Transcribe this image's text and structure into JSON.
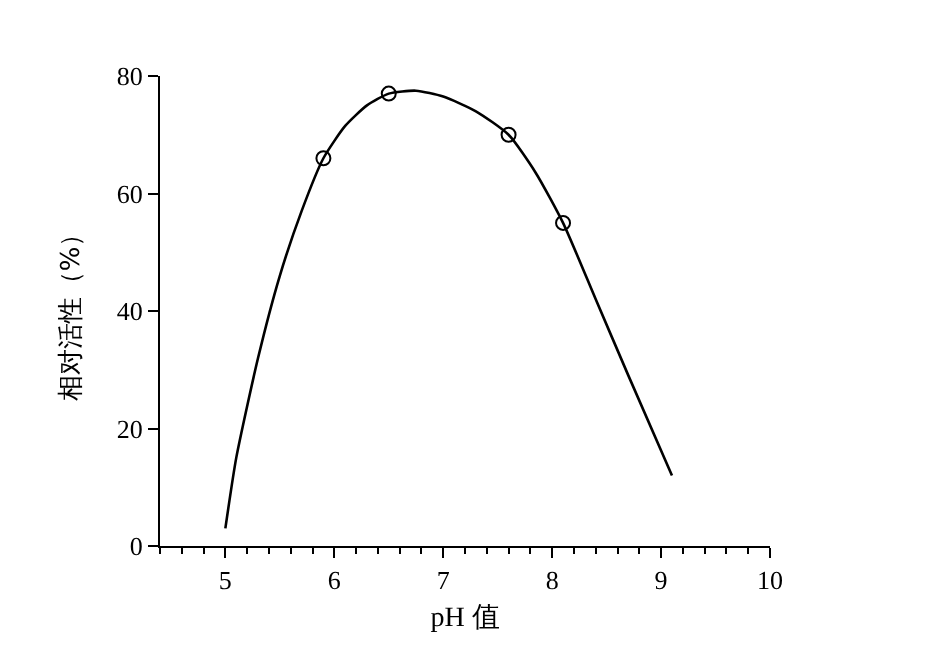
{
  "chart_data": {
    "type": "line",
    "xlabel": "pH 值",
    "ylabel": "相对活性（%）",
    "xlim": [
      4.4,
      10
    ],
    "xticks": [
      5,
      6,
      7,
      8,
      9,
      10
    ],
    "ylim": [
      0,
      80
    ],
    "yticks": [
      0,
      20,
      40,
      60,
      80
    ],
    "legend": false,
    "series": [
      {
        "marker": "none",
        "color": "#000000",
        "x": [
          5.0,
          5.1,
          5.3,
          5.5,
          5.7,
          5.9,
          6.1,
          6.3,
          6.5,
          6.75,
          7.0,
          7.3,
          7.6,
          7.85,
          8.1,
          8.4,
          8.7,
          9.1
        ],
        "values": [
          3,
          15,
          32,
          46,
          57,
          66,
          71.5,
          75,
          77,
          77.5,
          76.5,
          74,
          70,
          63.5,
          55,
          42,
          29,
          12
        ]
      },
      {
        "type": "scatter",
        "marker": "circle",
        "color": "#000000",
        "x": [
          5.9,
          6.5,
          7.6,
          8.1
        ],
        "values": [
          66,
          77,
          70,
          55
        ]
      }
    ]
  }
}
